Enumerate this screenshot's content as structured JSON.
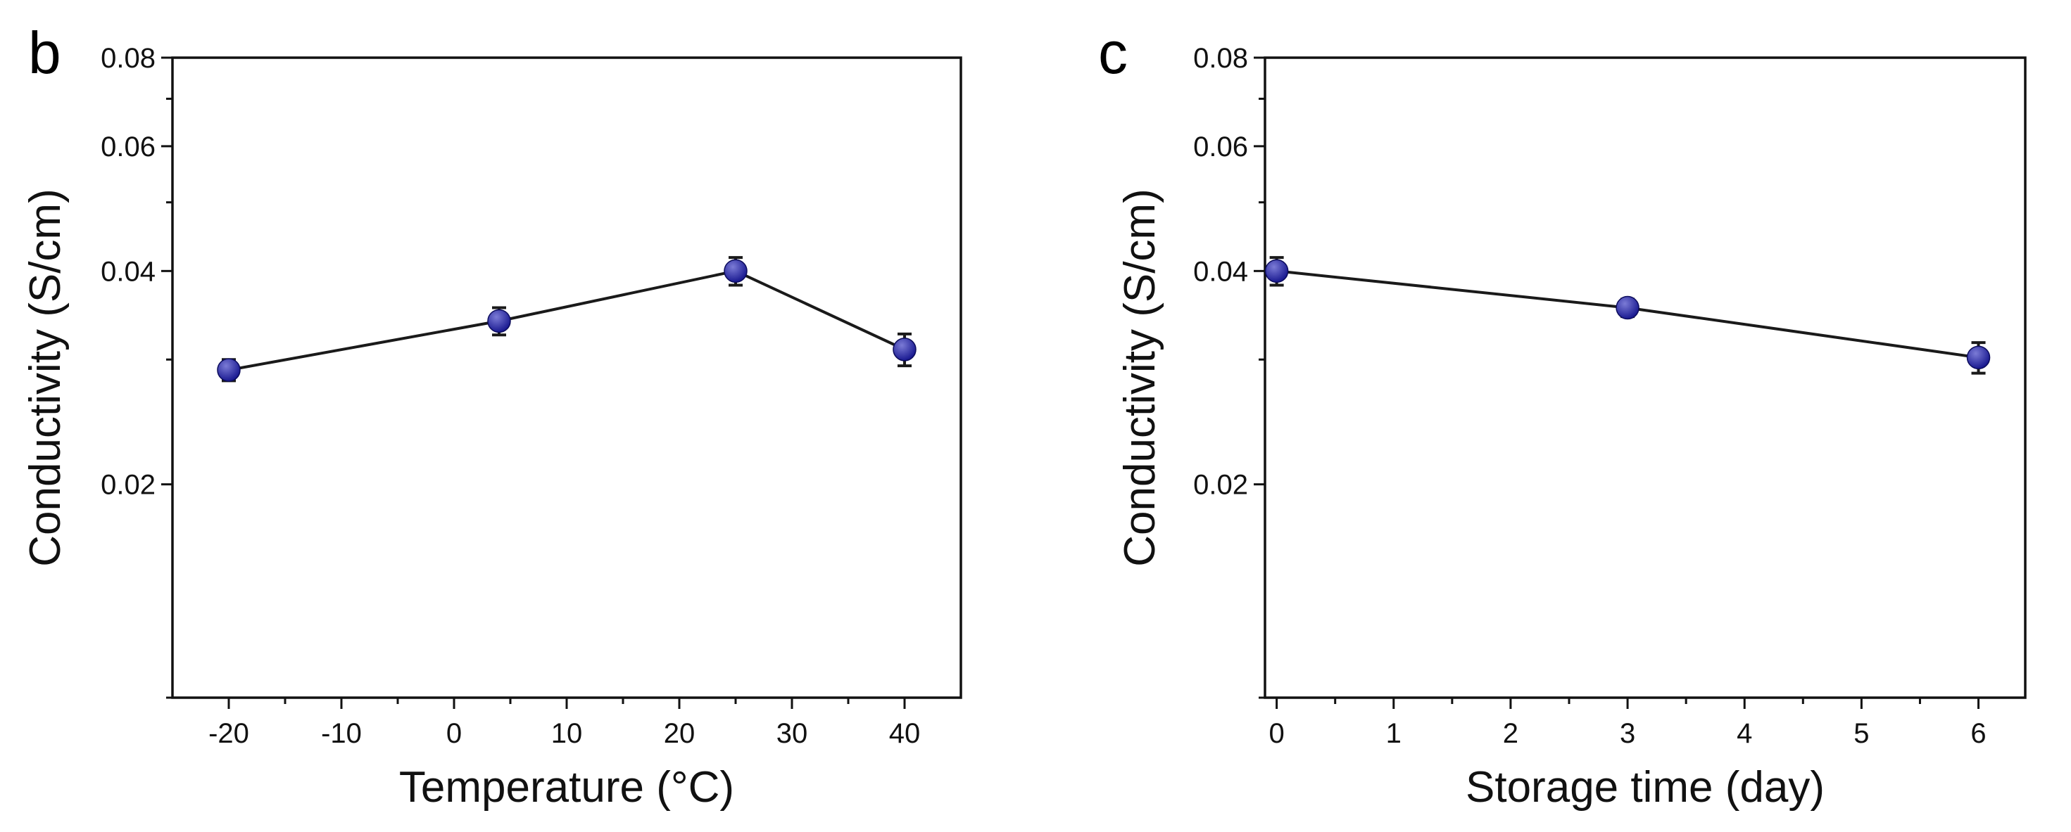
{
  "colors": {
    "marker": "#16168e",
    "marker_highlight": "#7b7bd6",
    "line": "#1a1a1a",
    "axis": "#111111"
  },
  "chart_data": [
    {
      "panel": "b",
      "type": "line",
      "xlabel": "Temperature (°C)",
      "ylabel": "Conductivity (S/cm)",
      "xlim": [
        -25,
        45
      ],
      "ylim": [
        0.01,
        0.08
      ],
      "yscale": "log",
      "x_ticks": [
        -20,
        -10,
        0,
        10,
        20,
        30,
        40
      ],
      "x_tick_labels": [
        "-20",
        "-10",
        "0",
        "10",
        "20",
        "30",
        "40"
      ],
      "y_ticks": [
        0.02,
        0.04,
        0.06,
        0.08
      ],
      "y_tick_labels": [
        "0.02",
        "0.04",
        "0.06",
        "0.08"
      ],
      "y_minor_ticks": [
        0.01,
        0.03,
        0.05,
        0.07
      ],
      "series": [
        {
          "name": "Conductivity",
          "x": [
            -20,
            4,
            25,
            40
          ],
          "y": [
            0.029,
            0.034,
            0.04,
            0.031
          ],
          "err": [
            0.001,
            0.0015,
            0.0018,
            0.0016
          ]
        }
      ]
    },
    {
      "panel": "c",
      "type": "line",
      "xlabel": "Storage time (day)",
      "ylabel": "Conductivity (S/cm)",
      "xlim": [
        -0.1,
        6.4
      ],
      "ylim": [
        0.01,
        0.08
      ],
      "yscale": "log",
      "x_ticks": [
        0,
        1,
        2,
        3,
        4,
        5,
        6
      ],
      "x_tick_labels": [
        "0",
        "1",
        "2",
        "3",
        "4",
        "5",
        "6"
      ],
      "y_ticks": [
        0.02,
        0.04,
        0.06,
        0.08
      ],
      "y_tick_labels": [
        "0.02",
        "0.04",
        "0.06",
        "0.08"
      ],
      "y_minor_ticks": [
        0.01,
        0.03,
        0.05,
        0.07
      ],
      "series": [
        {
          "name": "Conductivity",
          "x": [
            0,
            3,
            6
          ],
          "y": [
            0.04,
            0.0355,
            0.0302
          ],
          "err": [
            0.0018,
            0.001,
            0.0015
          ]
        }
      ]
    }
  ]
}
